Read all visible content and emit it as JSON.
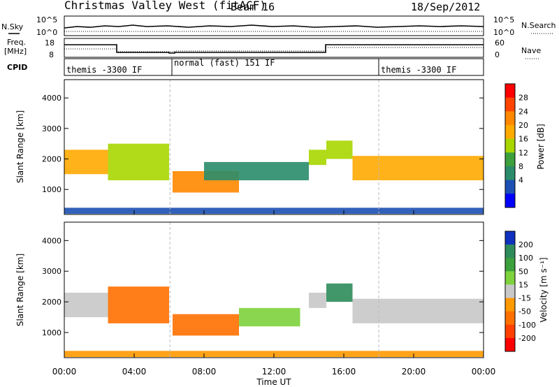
{
  "header": {
    "title": "Christmas Valley West (fitACF)",
    "beam": "Beam 16",
    "date": "18/Sep/2012"
  },
  "status_panels": {
    "nsky": {
      "left_label": "N.Sky",
      "right_label": "N.Search",
      "left_ticks": [
        "10^5",
        "10^0"
      ],
      "right_ticks": [
        "10^5",
        "10^0"
      ]
    },
    "freq": {
      "left_label_top": "Freq.",
      "left_label_bottom": "[MHz]",
      "right_label": "Nave",
      "left_ticks": [
        "18",
        "8"
      ],
      "right_ticks": [
        "60",
        "0"
      ]
    },
    "cpid": {
      "label": "CPID",
      "segments": [
        "themis -3300 IF",
        "normal (fast) 151 IF",
        "themis -3300 IF"
      ]
    }
  },
  "axes": {
    "xlabel": "Time UT",
    "x_ticks": [
      "00:00",
      "04:00",
      "08:00",
      "12:00",
      "16:00",
      "20:00",
      "00:00"
    ],
    "ylabel": "Slant Range [km]",
    "y_ticks": [
      "4000",
      "3000",
      "2000",
      "1000"
    ]
  },
  "colorbars": {
    "power": {
      "label": "Power [dB]",
      "ticks": [
        "28",
        "24",
        "20",
        "16",
        "12",
        "8",
        "4"
      ],
      "colors": [
        "#ff0000",
        "#ff4400",
        "#ff8800",
        "#ffaa00",
        "#a8d600",
        "#3ca03c",
        "#2a8c6a",
        "#1c50b4",
        "#0000ff"
      ]
    },
    "velocity": {
      "label": "Velocity [m s⁻¹]",
      "ticks": [
        "200",
        "100",
        "50",
        "15",
        "-15",
        "-50",
        "-100",
        "-200"
      ],
      "colors": [
        "#1030c0",
        "#2e8c5a",
        "#3ca03c",
        "#7ed23c",
        "#c8c8c8",
        "#ff9900",
        "#ff7000",
        "#ff4000",
        "#ff0000"
      ]
    }
  },
  "chart_data": [
    {
      "type": "heatmap",
      "title": "Power",
      "xlabel": "Time UT",
      "ylabel": "Slant Range [km]",
      "xlim": [
        0,
        24
      ],
      "ylim": [
        180,
        4600
      ],
      "colorbar": "Power [dB]",
      "regions": [
        {
          "t0": 0.0,
          "t1": 2.5,
          "r0": 1500,
          "r1": 2300,
          "db": 20
        },
        {
          "t0": 2.5,
          "t1": 6.0,
          "r0": 1300,
          "r1": 2500,
          "db": 16
        },
        {
          "t0": 6.2,
          "t1": 10.0,
          "r0": 900,
          "r1": 1600,
          "db": 26
        },
        {
          "t0": 8.0,
          "t1": 14.0,
          "r0": 1300,
          "r1": 1900,
          "db": 10
        },
        {
          "t0": 14.0,
          "t1": 15.0,
          "r0": 1800,
          "r1": 2300,
          "db": 18
        },
        {
          "t0": 15.0,
          "t1": 16.5,
          "r0": 2000,
          "r1": 2600,
          "db": 18
        },
        {
          "t0": 16.5,
          "t1": 24.0,
          "r0": 1300,
          "r1": 2100,
          "db": 22
        },
        {
          "t0": 0.0,
          "t1": 24.0,
          "r0": 200,
          "r1": 400,
          "db": 6
        }
      ]
    },
    {
      "type": "heatmap",
      "title": "Velocity",
      "xlabel": "Time UT",
      "ylabel": "Slant Range [km]",
      "xlim": [
        0,
        24
      ],
      "ylim": [
        180,
        4600
      ],
      "colorbar": "Velocity [m s⁻¹]",
      "regions": [
        {
          "t0": 0.0,
          "t1": 2.5,
          "r0": 1500,
          "r1": 2300,
          "v": 0
        },
        {
          "t0": 2.5,
          "t1": 6.0,
          "r0": 1300,
          "r1": 2500,
          "v": -80
        },
        {
          "t0": 6.2,
          "t1": 10.0,
          "r0": 900,
          "r1": 1600,
          "v": -90
        },
        {
          "t0": 10.0,
          "t1": 13.5,
          "r0": 1200,
          "r1": 1800,
          "v": 30
        },
        {
          "t0": 14.0,
          "t1": 15.0,
          "r0": 1800,
          "r1": 2300,
          "v": 0
        },
        {
          "t0": 15.0,
          "t1": 16.5,
          "r0": 2000,
          "r1": 2600,
          "v": 120
        },
        {
          "t0": 16.5,
          "t1": 24.0,
          "r0": 1300,
          "r1": 2100,
          "v": 0
        },
        {
          "t0": 0.0,
          "t1": 24.0,
          "r0": 200,
          "r1": 400,
          "v": -40
        }
      ]
    }
  ]
}
